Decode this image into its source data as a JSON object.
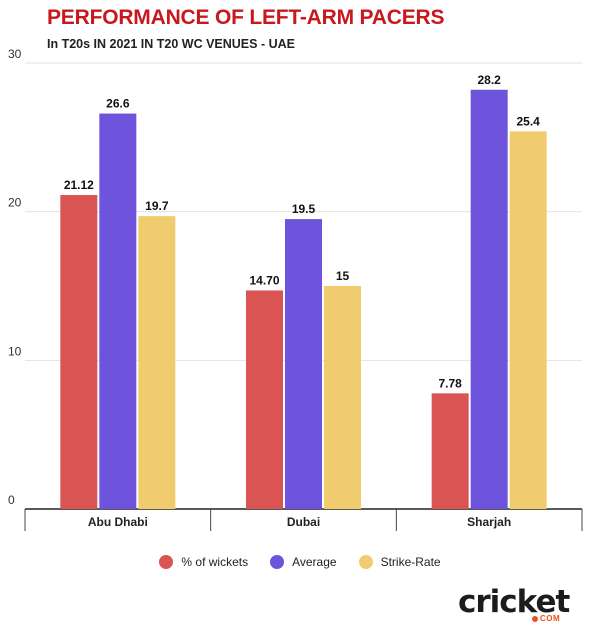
{
  "chart_data": {
    "type": "bar",
    "title": "PERFORMANCE OF LEFT-ARM PACERS",
    "subtitle": "In T20s IN 2021 IN T20 WC VENUES - UAE",
    "categories": [
      "Abu Dhabi",
      "Dubai",
      "Sharjah"
    ],
    "series": [
      {
        "name": "% of wickets",
        "color": "#db5454",
        "values": [
          21.12,
          14.7,
          7.78
        ],
        "labels": [
          "21.12",
          "14.70",
          "7.78"
        ]
      },
      {
        "name": "Average",
        "color": "#6e54dc",
        "values": [
          26.6,
          19.5,
          28.2
        ],
        "labels": [
          "26.6",
          "19.5",
          "28.2"
        ]
      },
      {
        "name": "Strike-Rate",
        "color": "#f0cc6e",
        "values": [
          19.7,
          15,
          25.4
        ],
        "labels": [
          "19.7",
          "15",
          "25.4"
        ]
      }
    ],
    "ylim": [
      0,
      30
    ],
    "yticks": [
      "0",
      "10",
      "20",
      "30"
    ],
    "grid": true,
    "legend_position": "bottom"
  },
  "branding": {
    "logo_text": "cricket",
    "logo_sub": "COM",
    "logo_dot_color": "#e8531b"
  }
}
